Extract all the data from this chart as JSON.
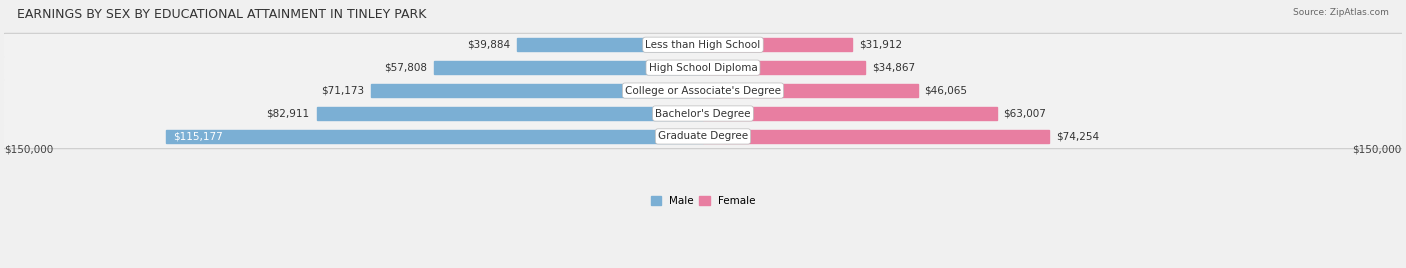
{
  "title": "EARNINGS BY SEX BY EDUCATIONAL ATTAINMENT IN TINLEY PARK",
  "source": "Source: ZipAtlas.com",
  "categories": [
    "Less than High School",
    "High School Diploma",
    "College or Associate's Degree",
    "Bachelor's Degree",
    "Graduate Degree"
  ],
  "male_values": [
    39884,
    57808,
    71173,
    82911,
    115177
  ],
  "female_values": [
    31912,
    34867,
    46065,
    63007,
    74254
  ],
  "male_color": "#7bafd4",
  "female_color": "#e87ea1",
  "male_label": "Male",
  "female_label": "Female",
  "axis_max": 150000,
  "title_fontsize": 9,
  "label_fontsize": 7.5,
  "value_fontsize": 7.5,
  "xlabel_left": "$150,000",
  "xlabel_right": "$150,000",
  "row_colors": [
    "#f0f0f0",
    "#e0e0e0"
  ],
  "row_inner_color": "#f8f8f8",
  "bar_height": 0.58
}
